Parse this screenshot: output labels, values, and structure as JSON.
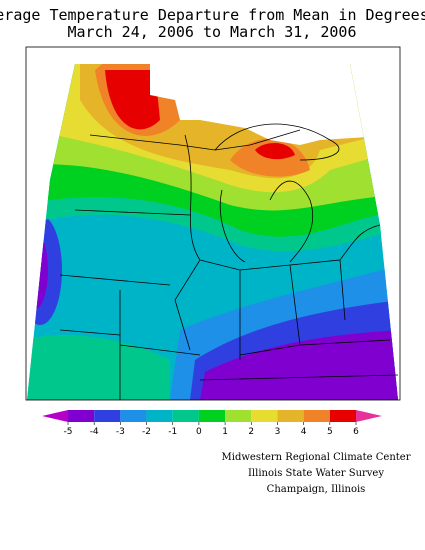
{
  "title": [
    "Average Temperature Departure from Mean in Degrees F",
    "March 24, 2006 to March 31, 2006"
  ],
  "legend": {
    "ticks": [
      -5,
      -4,
      -3,
      -2,
      -1,
      0,
      1,
      2,
      3,
      4,
      5,
      6
    ],
    "colors": [
      "#b400c8",
      "#8000d0",
      "#3040e0",
      "#1e90e8",
      "#00b4c8",
      "#00c88c",
      "#00d020",
      "#a0e030",
      "#e6dc32",
      "#e6b428",
      "#f08228",
      "#e60000",
      "#e6329b"
    ]
  },
  "credits": [
    "Midwestern Regional Climate Center",
    "Illinois State Water Survey",
    "Champaign, Illinois"
  ]
}
